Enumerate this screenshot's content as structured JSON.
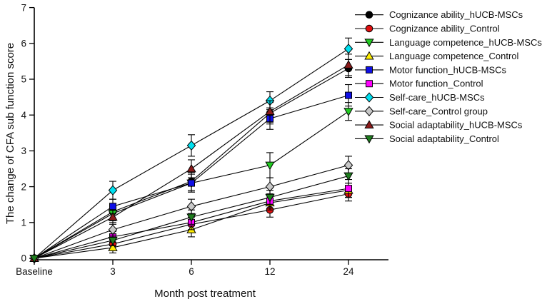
{
  "chart_data": {
    "type": "line",
    "title": "",
    "xlabel": "Month post treatment",
    "ylabel": "The change of CFA sub function score",
    "categories": [
      "Baseline",
      "3",
      "6",
      "12",
      "24"
    ],
    "ylim": [
      0,
      7
    ],
    "yticks": [
      0,
      1,
      2,
      3,
      4,
      5,
      6,
      7
    ],
    "grid": false,
    "legend_position": "top-right",
    "line_color": "#000000",
    "series": [
      {
        "name": "Cognizance ability_hUCB-MSCs",
        "marker": "circle",
        "color": "#000000",
        "values": [
          0,
          1.3,
          2.15,
          4.05,
          5.3
        ],
        "errors": [
          0,
          0.2,
          0.25,
          0.3,
          0.25
        ]
      },
      {
        "name": "Cognizance ability_Control",
        "marker": "circle",
        "color": "#e01010",
        "values": [
          0,
          0.4,
          0.95,
          1.35,
          1.8
        ],
        "errors": [
          0,
          0.15,
          0.2,
          0.2,
          0.2
        ]
      },
      {
        "name": "Language competence_hUCB-MSCs",
        "marker": "triangle-down",
        "color": "#22cc22",
        "values": [
          0,
          1.25,
          2.1,
          2.6,
          4.1
        ],
        "errors": [
          0,
          0.2,
          0.25,
          0.35,
          0.25
        ]
      },
      {
        "name": "Language competence_Control",
        "marker": "triangle-up",
        "color": "#ffee00",
        "values": [
          0,
          0.3,
          0.8,
          1.55,
          1.9
        ],
        "errors": [
          0,
          0.15,
          0.2,
          0.2,
          0.2
        ]
      },
      {
        "name": "Motor function_hUCB-MSCs",
        "marker": "square",
        "color": "#0f0fe6",
        "values": [
          0,
          1.45,
          2.1,
          3.9,
          4.55
        ],
        "errors": [
          0,
          0.2,
          0.25,
          0.3,
          0.3
        ]
      },
      {
        "name": "Motor function_Control",
        "marker": "square",
        "color": "#ff00ff",
        "values": [
          0,
          0.6,
          1.0,
          1.6,
          1.95
        ],
        "errors": [
          0,
          0.15,
          0.2,
          0.2,
          0.25
        ]
      },
      {
        "name": "Self-care_hUCB-MSCs",
        "marker": "diamond",
        "color": "#00e0f0",
        "values": [
          0,
          1.9,
          3.15,
          4.4,
          5.85
        ],
        "errors": [
          0,
          0.25,
          0.3,
          0.25,
          0.3
        ]
      },
      {
        "name": "Self-care_Control group",
        "marker": "diamond",
        "color": "#c8c8c8",
        "values": [
          0,
          0.8,
          1.45,
          2.0,
          2.6
        ],
        "errors": [
          0,
          0.2,
          0.2,
          0.25,
          0.25
        ]
      },
      {
        "name": "Social adaptability_hUCB-MSCs",
        "marker": "triangle-up",
        "color": "#8b1a1a",
        "values": [
          0,
          1.15,
          2.5,
          4.1,
          5.4
        ],
        "errors": [
          0,
          0.2,
          0.25,
          0.3,
          0.3
        ]
      },
      {
        "name": "Social adaptability_Control",
        "marker": "triangle-down",
        "color": "#1e7d1e",
        "values": [
          0,
          0.5,
          1.15,
          1.7,
          2.3
        ],
        "errors": [
          0,
          0.15,
          0.2,
          0.2,
          0.2
        ]
      }
    ]
  }
}
